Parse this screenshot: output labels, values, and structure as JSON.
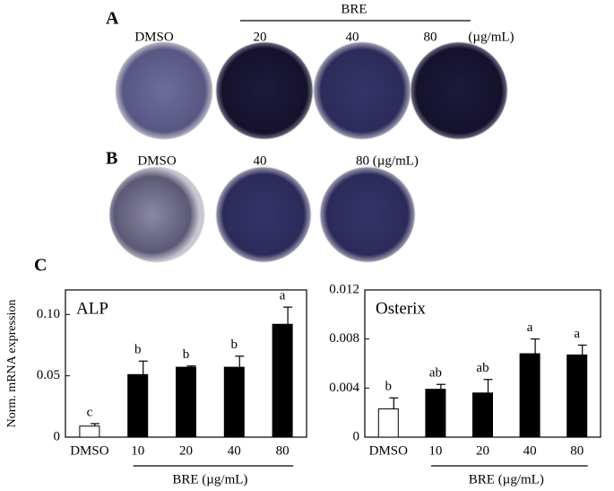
{
  "panels": {
    "A": {
      "label": "A",
      "group_label": "BRE",
      "wells": [
        "DMSO",
        "20",
        "40",
        "80"
      ],
      "unit": "(µg/mL)"
    },
    "B": {
      "label": "B",
      "wells": [
        "DMSO",
        "40",
        "80 (µg/mL)"
      ]
    },
    "C": {
      "label": "C"
    }
  },
  "chart_data": [
    {
      "type": "bar",
      "title": "ALP",
      "ylabel": "Norm. mRNA expression",
      "categories": [
        "DMSO",
        "10",
        "20",
        "40",
        "80"
      ],
      "values": [
        0.009,
        0.051,
        0.057,
        0.057,
        0.092
      ],
      "errors": [
        0.002,
        0.011,
        0.001,
        0.009,
        0.014
      ],
      "annotations": [
        "c",
        "b",
        "b",
        "b",
        "a"
      ],
      "colors": [
        "#ffffff",
        "#000000",
        "#000000",
        "#000000",
        "#000000"
      ],
      "group_label": "BRE (µg/mL)",
      "ylim": [
        0,
        0.12
      ],
      "yticks": [
        0,
        0.05,
        {
          "value": 0.1,
          "label": "0.10"
        }
      ]
    },
    {
      "type": "bar",
      "title": "Osterix",
      "categories": [
        "DMSO",
        "10",
        "20",
        "40",
        "80"
      ],
      "values": [
        0.0023,
        0.0039,
        0.0036,
        0.0068,
        0.0067
      ],
      "errors": [
        0.0009,
        0.0004,
        0.0011,
        0.0012,
        0.0008
      ],
      "annotations": [
        "b",
        "ab",
        "ab",
        "a",
        "a"
      ],
      "colors": [
        "#ffffff",
        "#000000",
        "#000000",
        "#000000",
        "#000000"
      ],
      "group_label": "BRE (µg/mL)",
      "ylim": [
        0,
        0.012
      ],
      "yticks": [
        0,
        0.004,
        0.008,
        0.012
      ]
    }
  ]
}
